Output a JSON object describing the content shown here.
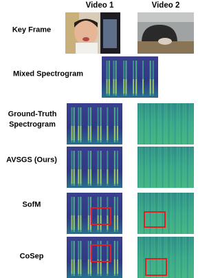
{
  "columns": [
    "Video 1",
    "Video 2"
  ],
  "row_labels": [
    "Key Frame",
    "Mixed Spectrogram",
    "Ground-Truth Spectrogram",
    "AVSGS (Ours)",
    "SofM",
    "CoSep"
  ]
}
